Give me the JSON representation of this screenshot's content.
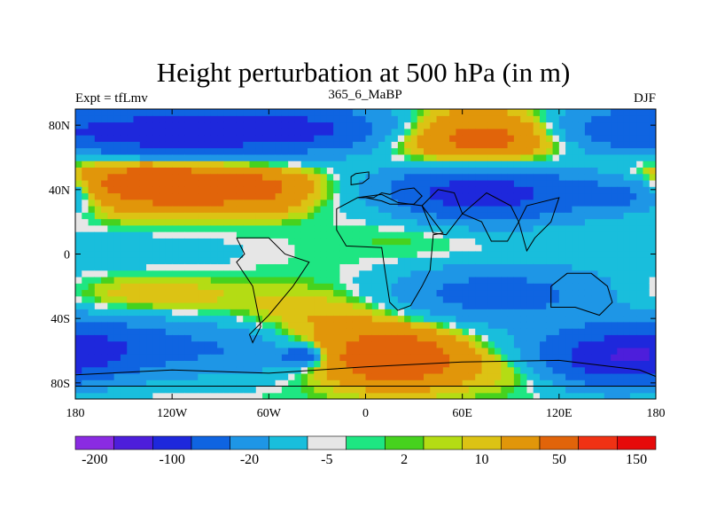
{
  "title": "Height perturbation at 500 hPa (in m)",
  "subtitle": "365_6_MaBP",
  "left_label": "Expt = tfLmv",
  "right_label": "DJF",
  "colors": {
    "lv0": "#8a2be2",
    "lv1": "#4d1edb",
    "lv2": "#1e28dc",
    "lv3": "#0f64e1",
    "lv4": "#1e96e6",
    "lv5": "#19bedc",
    "lv6": "#e6e6e6",
    "lv7": "#1ee682",
    "lv8": "#46d21e",
    "lv9": "#b4dc14",
    "lv10": "#dcc314",
    "lv11": "#e1960a",
    "lv12": "#e1640a",
    "lv13": "#f03214",
    "lv14": "#e60a0a",
    "contour_line": "#ffffff",
    "coast_line": "#000000"
  },
  "chart_data": {
    "type": "heatmap",
    "title": "Height perturbation at 500 hPa (in m)",
    "subtitle": "365_6_MaBP",
    "xlim": [
      -180,
      180
    ],
    "ylim": [
      -90,
      90
    ],
    "x_ticks": [
      {
        "value": -180,
        "label": "180"
      },
      {
        "value": -120,
        "label": "120W"
      },
      {
        "value": -60,
        "label": "60W"
      },
      {
        "value": 0,
        "label": "0"
      },
      {
        "value": 60,
        "label": "60E"
      },
      {
        "value": 120,
        "label": "120E"
      },
      {
        "value": 180,
        "label": "180"
      }
    ],
    "y_ticks": [
      {
        "value": 80,
        "label": "80N"
      },
      {
        "value": 40,
        "label": "40N"
      },
      {
        "value": 0,
        "label": "0"
      },
      {
        "value": -40,
        "label": "40S"
      },
      {
        "value": -80,
        "label": "80S"
      }
    ],
    "colorbar": {
      "colors": [
        "lv0",
        "lv1",
        "lv2",
        "lv3",
        "lv4",
        "lv5",
        "lv6",
        "lv7",
        "lv8",
        "lv9",
        "lv10",
        "lv11",
        "lv12",
        "lv13",
        "lv14"
      ],
      "labels": [
        {
          "after_box": 1,
          "text": "-200"
        },
        {
          "after_box": 3,
          "text": "-100"
        },
        {
          "after_box": 5,
          "text": "-20"
        },
        {
          "after_box": 7,
          "text": "-5"
        },
        {
          "after_box": 9,
          "text": "2"
        },
        {
          "after_box": 11,
          "text": "10"
        },
        {
          "after_box": 13,
          "text": "50"
        },
        {
          "after_box": 15,
          "text": "150"
        }
      ]
    },
    "field_features": [
      {
        "lon": -120,
        "lat": 75,
        "amp": -140,
        "slon": 50,
        "slat": 12
      },
      {
        "lon": -30,
        "lat": 78,
        "amp": -90,
        "slon": 40,
        "slat": 10
      },
      {
        "lon": 70,
        "lat": 72,
        "amp": 70,
        "slon": 40,
        "slat": 12
      },
      {
        "lon": 150,
        "lat": 78,
        "amp": -60,
        "slon": 30,
        "slat": 10
      },
      {
        "lon": -130,
        "lat": 45,
        "amp": 90,
        "slon": 45,
        "slat": 12
      },
      {
        "lon": -60,
        "lat": 40,
        "amp": 40,
        "slon": 30,
        "slat": 10
      },
      {
        "lon": 70,
        "lat": 38,
        "amp": -130,
        "slon": 50,
        "slat": 12
      },
      {
        "lon": 165,
        "lat": 38,
        "amp": -60,
        "slon": 20,
        "slat": 8
      },
      {
        "lon": 10,
        "lat": 35,
        "amp": 20,
        "slon": 20,
        "slat": 10
      },
      {
        "lon": -150,
        "lat": 0,
        "amp": -12,
        "slon": 60,
        "slat": 12
      },
      {
        "lon": 30,
        "lat": 15,
        "amp": 8,
        "slon": 30,
        "slat": 12
      },
      {
        "lon": 80,
        "lat": -25,
        "amp": -70,
        "slon": 50,
        "slat": 12
      },
      {
        "lon": -140,
        "lat": -25,
        "amp": 20,
        "slon": 40,
        "slat": 10
      },
      {
        "lon": -20,
        "lat": -40,
        "amp": 25,
        "slon": 40,
        "slat": 15
      },
      {
        "lon": -160,
        "lat": -55,
        "amp": -70,
        "slon": 40,
        "slat": 12
      },
      {
        "lon": -80,
        "lat": -60,
        "amp": -40,
        "slon": 30,
        "slat": 12
      },
      {
        "lon": -40,
        "lat": -63,
        "amp": -90,
        "slon": 8,
        "slat": 4
      },
      {
        "lon": 20,
        "lat": -65,
        "amp": 90,
        "slon": 30,
        "slat": 12
      },
      {
        "lon": 150,
        "lat": -65,
        "amp": -130,
        "slon": 40,
        "slat": 12
      },
      {
        "lon": 100,
        "lat": -70,
        "amp": 40,
        "slon": 25,
        "slat": 10
      }
    ],
    "land_outlines": [
      [
        [
          -5,
          35
        ],
        [
          5,
          35
        ],
        [
          10,
          38
        ],
        [
          15,
          37
        ],
        [
          22,
          40
        ],
        [
          30,
          41
        ],
        [
          35,
          36
        ],
        [
          30,
          31
        ],
        [
          15,
          31
        ],
        [
          10,
          33
        ],
        [
          0,
          35
        ],
        [
          -5,
          35
        ]
      ],
      [
        [
          -6,
          50
        ],
        [
          2,
          51
        ],
        [
          2,
          47
        ],
        [
          -2,
          44
        ],
        [
          -9,
          43
        ],
        [
          -9,
          48
        ],
        [
          -6,
          50
        ]
      ],
      [
        [
          -5,
          35
        ],
        [
          -18,
          28
        ],
        [
          -18,
          15
        ],
        [
          -12,
          5
        ],
        [
          10,
          4
        ],
        [
          12,
          -10
        ],
        [
          15,
          -30
        ],
        [
          20,
          -35
        ],
        [
          28,
          -32
        ],
        [
          35,
          -20
        ],
        [
          40,
          -10
        ],
        [
          42,
          12
        ],
        [
          48,
          13
        ],
        [
          35,
          30
        ],
        [
          20,
          32
        ],
        [
          10,
          37
        ],
        [
          -5,
          35
        ]
      ],
      [
        [
          35,
          30
        ],
        [
          45,
          40
        ],
        [
          55,
          38
        ],
        [
          60,
          25
        ],
        [
          50,
          12
        ],
        [
          42,
          13
        ],
        [
          35,
          30
        ]
      ],
      [
        [
          60,
          25
        ],
        [
          75,
          38
        ],
        [
          90,
          30
        ],
        [
          95,
          20
        ],
        [
          88,
          8
        ],
        [
          78,
          8
        ],
        [
          72,
          20
        ],
        [
          60,
          25
        ]
      ],
      [
        [
          95,
          20
        ],
        [
          100,
          30
        ],
        [
          120,
          35
        ],
        [
          115,
          20
        ],
        [
          105,
          10
        ],
        [
          100,
          2
        ],
        [
          95,
          20
        ]
      ],
      [
        [
          115,
          -20
        ],
        [
          125,
          -12
        ],
        [
          140,
          -12
        ],
        [
          150,
          -20
        ],
        [
          153,
          -30
        ],
        [
          145,
          -38
        ],
        [
          130,
          -33
        ],
        [
          115,
          -33
        ],
        [
          115,
          -20
        ]
      ],
      [
        [
          -80,
          10
        ],
        [
          -75,
          0
        ],
        [
          -80,
          -5
        ],
        [
          -70,
          -20
        ],
        [
          -65,
          -45
        ],
        [
          -70,
          -55
        ],
        [
          -72,
          -50
        ],
        [
          -60,
          -38
        ],
        [
          -45,
          -20
        ],
        [
          -35,
          -5
        ],
        [
          -50,
          0
        ],
        [
          -60,
          10
        ],
        [
          -80,
          10
        ]
      ],
      [
        [
          -180,
          -75
        ],
        [
          -120,
          -72
        ],
        [
          -60,
          -74
        ],
        [
          0,
          -70
        ],
        [
          60,
          -67
        ],
        [
          120,
          -66
        ],
        [
          170,
          -72
        ],
        [
          180,
          -76
        ],
        [
          180,
          -82
        ],
        [
          -180,
          -82
        ],
        [
          -180,
          -75
        ]
      ]
    ]
  }
}
